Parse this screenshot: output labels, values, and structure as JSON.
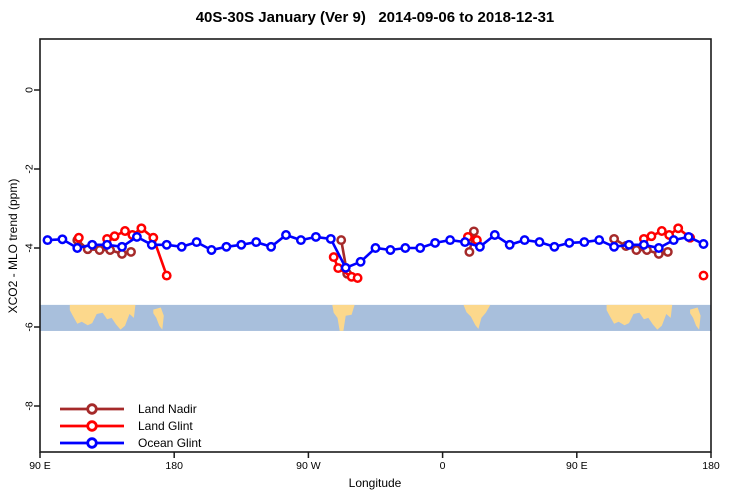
{
  "title": "40S-30S January (Ver 9)   2014-09-06 to 2018-12-31",
  "legend": {
    "items": [
      {
        "label": "Land Nadir",
        "color": "#A52A2A"
      },
      {
        "label": "Land Glint",
        "color": "#FF0000"
      },
      {
        "label": "Ocean Glint",
        "color": "#0000FF"
      }
    ]
  },
  "chart_data": {
    "type": "line",
    "title": "40S-30S January (Ver 9)   2014-09-06 to 2018-12-31",
    "xlabel": "Longitude",
    "ylabel": "XCO2 - MLO trend (ppm)",
    "axis_color": "#1a1a1a",
    "background": "#ffffff",
    "legend_position": "bottom-left",
    "grid": false,
    "x_axis": {
      "min": 90,
      "max": 540,
      "note": "longitude wraps eastward from 90E past the dateline and around to 180 again",
      "ticks": [
        {
          "v": 90,
          "label": "90 E"
        },
        {
          "v": 180,
          "label": "180"
        },
        {
          "v": 270,
          "label": "90 W"
        },
        {
          "v": 360,
          "label": "0"
        },
        {
          "v": 450,
          "label": "90 E"
        },
        {
          "v": 540,
          "label": "180"
        }
      ]
    },
    "y_axis": {
      "min": -9.2,
      "max": 1.3,
      "ticks": [
        {
          "v": 0,
          "label": "0"
        },
        {
          "v": -2,
          "label": "-2"
        },
        {
          "v": -4,
          "label": "-4"
        },
        {
          "v": -6,
          "label": "-6"
        },
        {
          "v": -8,
          "label": "-8"
        }
      ]
    },
    "series": [
      {
        "name": "Land Nadir",
        "color": "#A52A2A",
        "segments": [
          [
            [
              115,
              -3.8
            ],
            [
              122,
              -4.03
            ],
            [
              130,
              -4.05
            ],
            [
              137,
              -4.05
            ],
            [
              145,
              -4.15
            ],
            [
              151,
              -4.1
            ]
          ],
          [
            [
              292,
              -3.8
            ],
            [
              296,
              -4.65
            ]
          ],
          [
            [
              378,
              -4.1
            ],
            [
              381,
              -3.58
            ]
          ],
          [
            [
              475,
              -3.77
            ],
            [
              483,
              -3.95
            ],
            [
              490,
              -4.05
            ],
            [
              497,
              -4.05
            ],
            [
              505,
              -4.15
            ],
            [
              511,
              -4.1
            ]
          ]
        ],
        "isolated_points": []
      },
      {
        "name": "Land Glint",
        "color": "#FF0000",
        "segments": [
          [
            [
              135,
              -3.77
            ],
            [
              140,
              -3.7
            ],
            [
              147,
              -3.57
            ],
            [
              152,
              -3.67
            ],
            [
              158,
              -3.5
            ],
            [
              166,
              -3.74
            ],
            [
              175,
              -4.7
            ]
          ],
          [
            [
              287,
              -4.23
            ],
            [
              290,
              -4.51
            ],
            [
              299,
              -4.73
            ],
            [
              303,
              -4.76
            ]
          ],
          [
            [
              377,
              -3.72
            ],
            [
              383,
              -3.8
            ]
          ],
          [
            [
              495,
              -3.77
            ],
            [
              500,
              -3.7
            ],
            [
              507,
              -3.57
            ],
            [
              512,
              -3.67
            ],
            [
              518,
              -3.5
            ],
            [
              526,
              -3.74
            ]
          ]
        ],
        "isolated_points": [
          [
            116,
            -3.74
          ],
          [
            535,
            -4.7
          ]
        ]
      },
      {
        "name": "Ocean Glint",
        "color": "#0000FF",
        "segments": [
          [
            [
              95,
              -3.8
            ],
            [
              105,
              -3.78
            ],
            [
              115,
              -4.0
            ],
            [
              125,
              -3.92
            ],
            [
              135,
              -3.92
            ],
            [
              145,
              -3.97
            ],
            [
              155,
              -3.72
            ],
            [
              165,
              -3.92
            ],
            [
              175,
              -3.92
            ],
            [
              185,
              -3.97
            ],
            [
              195,
              -3.85
            ],
            [
              205,
              -4.05
            ],
            [
              215,
              -3.97
            ],
            [
              225,
              -3.92
            ],
            [
              235,
              -3.85
            ],
            [
              245,
              -3.97
            ],
            [
              255,
              -3.67
            ],
            [
              265,
              -3.8
            ],
            [
              275,
              -3.72
            ],
            [
              285,
              -3.77
            ],
            [
              295,
              -4.5
            ],
            [
              305,
              -4.35
            ],
            [
              315,
              -4.0
            ],
            [
              325,
              -4.05
            ],
            [
              335,
              -4.0
            ],
            [
              345,
              -4.0
            ],
            [
              355,
              -3.87
            ],
            [
              365,
              -3.8
            ],
            [
              375,
              -3.85
            ],
            [
              385,
              -3.97
            ],
            [
              395,
              -3.67
            ],
            [
              405,
              -3.92
            ],
            [
              415,
              -3.8
            ],
            [
              425,
              -3.85
            ],
            [
              435,
              -3.97
            ],
            [
              445,
              -3.87
            ],
            [
              455,
              -3.85
            ],
            [
              465,
              -3.8
            ],
            [
              475,
              -3.97
            ],
            [
              485,
              -3.92
            ],
            [
              495,
              -3.92
            ],
            [
              505,
              -4.0
            ],
            [
              515,
              -3.8
            ],
            [
              525,
              -3.72
            ],
            [
              535,
              -3.9
            ]
          ]
        ],
        "isolated_points": []
      }
    ],
    "map_band": {
      "description": "land/ocean strip for the 40S-30S latitude band",
      "ocean_color": "#A8BFDC",
      "land_color": "#FCD88C",
      "top": -5.44,
      "bottom": -6.1,
      "land_patches": [
        {
          "name": "australia",
          "pts": [
            [
              110,
              0
            ],
            [
              154,
              0
            ],
            [
              153,
              0.5
            ],
            [
              150,
              0.35
            ],
            [
              147,
              0.8
            ],
            [
              144,
              0.95
            ],
            [
              141,
              0.75
            ],
            [
              138,
              0.5
            ],
            [
              135,
              0.55
            ],
            [
              132,
              0.3
            ],
            [
              128,
              0.35
            ],
            [
              125,
              0.7
            ],
            [
              122,
              0.78
            ],
            [
              118,
              0.65
            ],
            [
              115,
              0.72
            ],
            [
              112,
              0.42
            ],
            [
              110,
              0.2
            ]
          ]
        },
        {
          "name": "new-zealand",
          "pts": [
            [
              166,
              0.18
            ],
            [
              171,
              0.1
            ],
            [
              173,
              0.42
            ],
            [
              172,
              0.95
            ],
            [
              170,
              0.8
            ],
            [
              168,
              0.5
            ],
            [
              166,
              0.32
            ]
          ]
        },
        {
          "name": "south-america",
          "pts": [
            [
              286,
              0
            ],
            [
              301,
              0
            ],
            [
              299,
              0.38
            ],
            [
              295,
              0.42
            ],
            [
              293.5,
              1
            ],
            [
              291,
              1
            ],
            [
              289.5,
              0.5
            ],
            [
              287,
              0.3
            ]
          ]
        },
        {
          "name": "africa",
          "pts": [
            [
              374,
              0
            ],
            [
              392,
              0
            ],
            [
              389,
              0.3
            ],
            [
              386,
              0.5
            ],
            [
              384,
              0.92
            ],
            [
              382,
              0.78
            ],
            [
              379,
              0.45
            ],
            [
              376,
              0.28
            ]
          ]
        },
        {
          "name": "australia-repeat",
          "pts": [
            [
              470,
              0
            ],
            [
              514,
              0
            ],
            [
              513,
              0.5
            ],
            [
              510,
              0.35
            ],
            [
              507,
              0.8
            ],
            [
              504,
              0.95
            ],
            [
              501,
              0.75
            ],
            [
              498,
              0.5
            ],
            [
              495,
              0.55
            ],
            [
              492,
              0.3
            ],
            [
              488,
              0.35
            ],
            [
              485,
              0.7
            ],
            [
              482,
              0.78
            ],
            [
              478,
              0.65
            ],
            [
              475,
              0.72
            ],
            [
              472,
              0.42
            ],
            [
              470,
              0.2
            ]
          ]
        },
        {
          "name": "new-zealand-repeat",
          "pts": [
            [
              526,
              0.18
            ],
            [
              531,
              0.1
            ],
            [
              533,
              0.42
            ],
            [
              532,
              0.95
            ],
            [
              530,
              0.8
            ],
            [
              528,
              0.5
            ],
            [
              526,
              0.32
            ]
          ]
        }
      ]
    }
  }
}
